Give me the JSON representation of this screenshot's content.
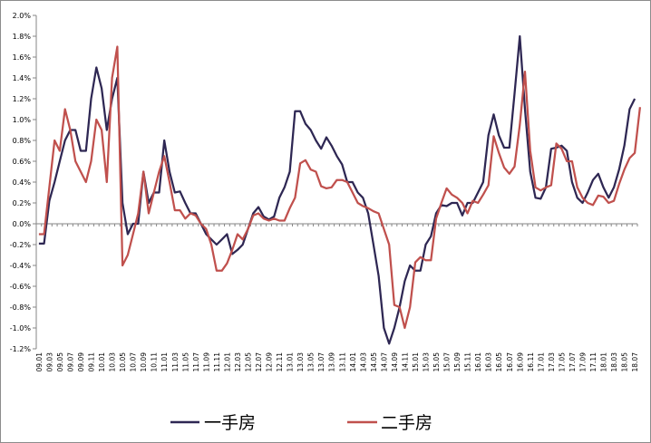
{
  "chart_data": {
    "type": "line",
    "title": "",
    "xlabel": "",
    "ylabel": "",
    "ylim": [
      -0.012,
      0.02
    ],
    "y_ticks": [
      -0.012,
      -0.01,
      -0.008,
      -0.006,
      -0.004,
      -0.002,
      0.0,
      0.002,
      0.004,
      0.006,
      0.008,
      0.01,
      0.012,
      0.014,
      0.016,
      0.018,
      0.02
    ],
    "y_tick_labels": [
      "-1.2%",
      "-1.0%",
      "-0.8%",
      "-0.6%",
      "-0.4%",
      "-0.2%",
      "0.0%",
      "0.2%",
      "0.4%",
      "0.6%",
      "0.8%",
      "1.0%",
      "1.2%",
      "1.4%",
      "1.6%",
      "1.8%",
      "2.0%"
    ],
    "x_tick_labels": [
      "09.01",
      "09.03",
      "09.05",
      "09.07",
      "09.09",
      "09.11",
      "10.01",
      "10.03",
      "10.05",
      "10.07",
      "10.09",
      "10.11",
      "11.01",
      "11.03",
      "11.05",
      "11.07",
      "11.09",
      "11.11",
      "12.01",
      "12.03",
      "12.05",
      "12.07",
      "12.09",
      "12.11",
      "13.01",
      "13.03",
      "13.05",
      "13.07",
      "13.09",
      "13.11",
      "14.01",
      "14.03",
      "14.05",
      "14.07",
      "14.09",
      "14.11",
      "15.01",
      "15.03",
      "15.05",
      "15.07",
      "15.09",
      "15.11",
      "16.01",
      "16.03",
      "16.05",
      "16.07",
      "16.09",
      "16.11",
      "17.01",
      "17.03",
      "17.05",
      "17.07",
      "17.09",
      "17.11",
      "18.01",
      "18.03",
      "18.05",
      "18.07"
    ],
    "grid": false,
    "legend": "bottom",
    "series": [
      {
        "name": "一手房",
        "color": "#2e2753",
        "values": [
          -0.0019,
          -0.0019,
          0.0022,
          0.004,
          0.006,
          0.008,
          0.009,
          0.009,
          0.007,
          0.007,
          0.012,
          0.015,
          0.013,
          0.009,
          0.012,
          0.014,
          0.002,
          -0.001,
          0.0,
          0.0,
          0.005,
          0.002,
          0.003,
          0.003,
          0.008,
          0.005,
          0.003,
          0.0031,
          0.002,
          0.001,
          0.001,
          0.0,
          -0.001,
          -0.0015,
          -0.002,
          -0.0015,
          -0.001,
          -0.0029,
          -0.0025,
          -0.002,
          -0.0005,
          0.001,
          0.0016,
          0.0007,
          0.0004,
          0.0007,
          0.0025,
          0.0035,
          0.005,
          0.0108,
          0.0108,
          0.0096,
          0.009,
          0.008,
          0.0072,
          0.0083,
          0.0075,
          0.0065,
          0.0057,
          0.004,
          0.004,
          0.003,
          0.0025,
          0.001,
          -0.002,
          -0.005,
          -0.01,
          -0.0115,
          -0.01,
          -0.008,
          -0.0055,
          -0.004,
          -0.0045,
          -0.0045,
          -0.002,
          -0.0012,
          0.001,
          0.0018,
          0.0017,
          0.002,
          0.002,
          0.0008,
          0.002,
          0.002,
          0.003,
          0.004,
          0.0085,
          0.0105,
          0.0085,
          0.0073,
          0.0073,
          0.0125,
          0.018,
          0.011,
          0.005,
          0.0025,
          0.0024,
          0.0035,
          0.0072,
          0.0073,
          0.0075,
          0.007,
          0.004,
          0.0025,
          0.002,
          0.003,
          0.0042,
          0.0048,
          0.0035,
          0.0025,
          0.0035,
          0.0052,
          0.0075,
          0.011,
          0.012
        ]
      },
      {
        "name": "二手房",
        "color": "#c0504d",
        "values": [
          -0.001,
          -0.001,
          0.0035,
          0.008,
          0.007,
          0.011,
          0.009,
          0.006,
          0.005,
          0.004,
          0.006,
          0.01,
          0.009,
          0.004,
          0.014,
          0.017,
          -0.004,
          -0.003,
          -0.001,
          0.001,
          0.005,
          0.001,
          0.003,
          0.005,
          0.0065,
          0.004,
          0.0013,
          0.0013,
          0.0005,
          0.001,
          0.0008,
          0.0,
          -0.0005,
          -0.002,
          -0.0045,
          -0.0045,
          -0.0038,
          -0.0025,
          -0.001,
          -0.0015,
          -0.0005,
          0.0008,
          0.001,
          0.0005,
          0.0003,
          0.0005,
          0.0003,
          0.0003,
          0.0015,
          0.0025,
          0.0058,
          0.0061,
          0.0052,
          0.005,
          0.0036,
          0.0034,
          0.0035,
          0.0042,
          0.0042,
          0.004,
          0.003,
          0.002,
          0.0017,
          0.0015,
          0.0012,
          0.001,
          -0.0005,
          -0.002,
          -0.0078,
          -0.008,
          -0.01,
          -0.008,
          -0.0037,
          -0.0032,
          -0.0035,
          -0.0035,
          0.0005,
          0.002,
          0.0034,
          0.0028,
          0.0025,
          0.002,
          0.001,
          0.0022,
          0.002,
          0.0028,
          0.0037,
          0.0084,
          0.0068,
          0.0054,
          0.0048,
          0.0055,
          0.0095,
          0.0146,
          0.007,
          0.0035,
          0.0032,
          0.0035,
          0.0037,
          0.0077,
          0.0072,
          0.006,
          0.006,
          0.0035,
          0.0025,
          0.002,
          0.0018,
          0.0027,
          0.0026,
          0.002,
          0.0022,
          0.0038,
          0.0052,
          0.0063,
          0.0068,
          0.0112
        ]
      }
    ]
  }
}
